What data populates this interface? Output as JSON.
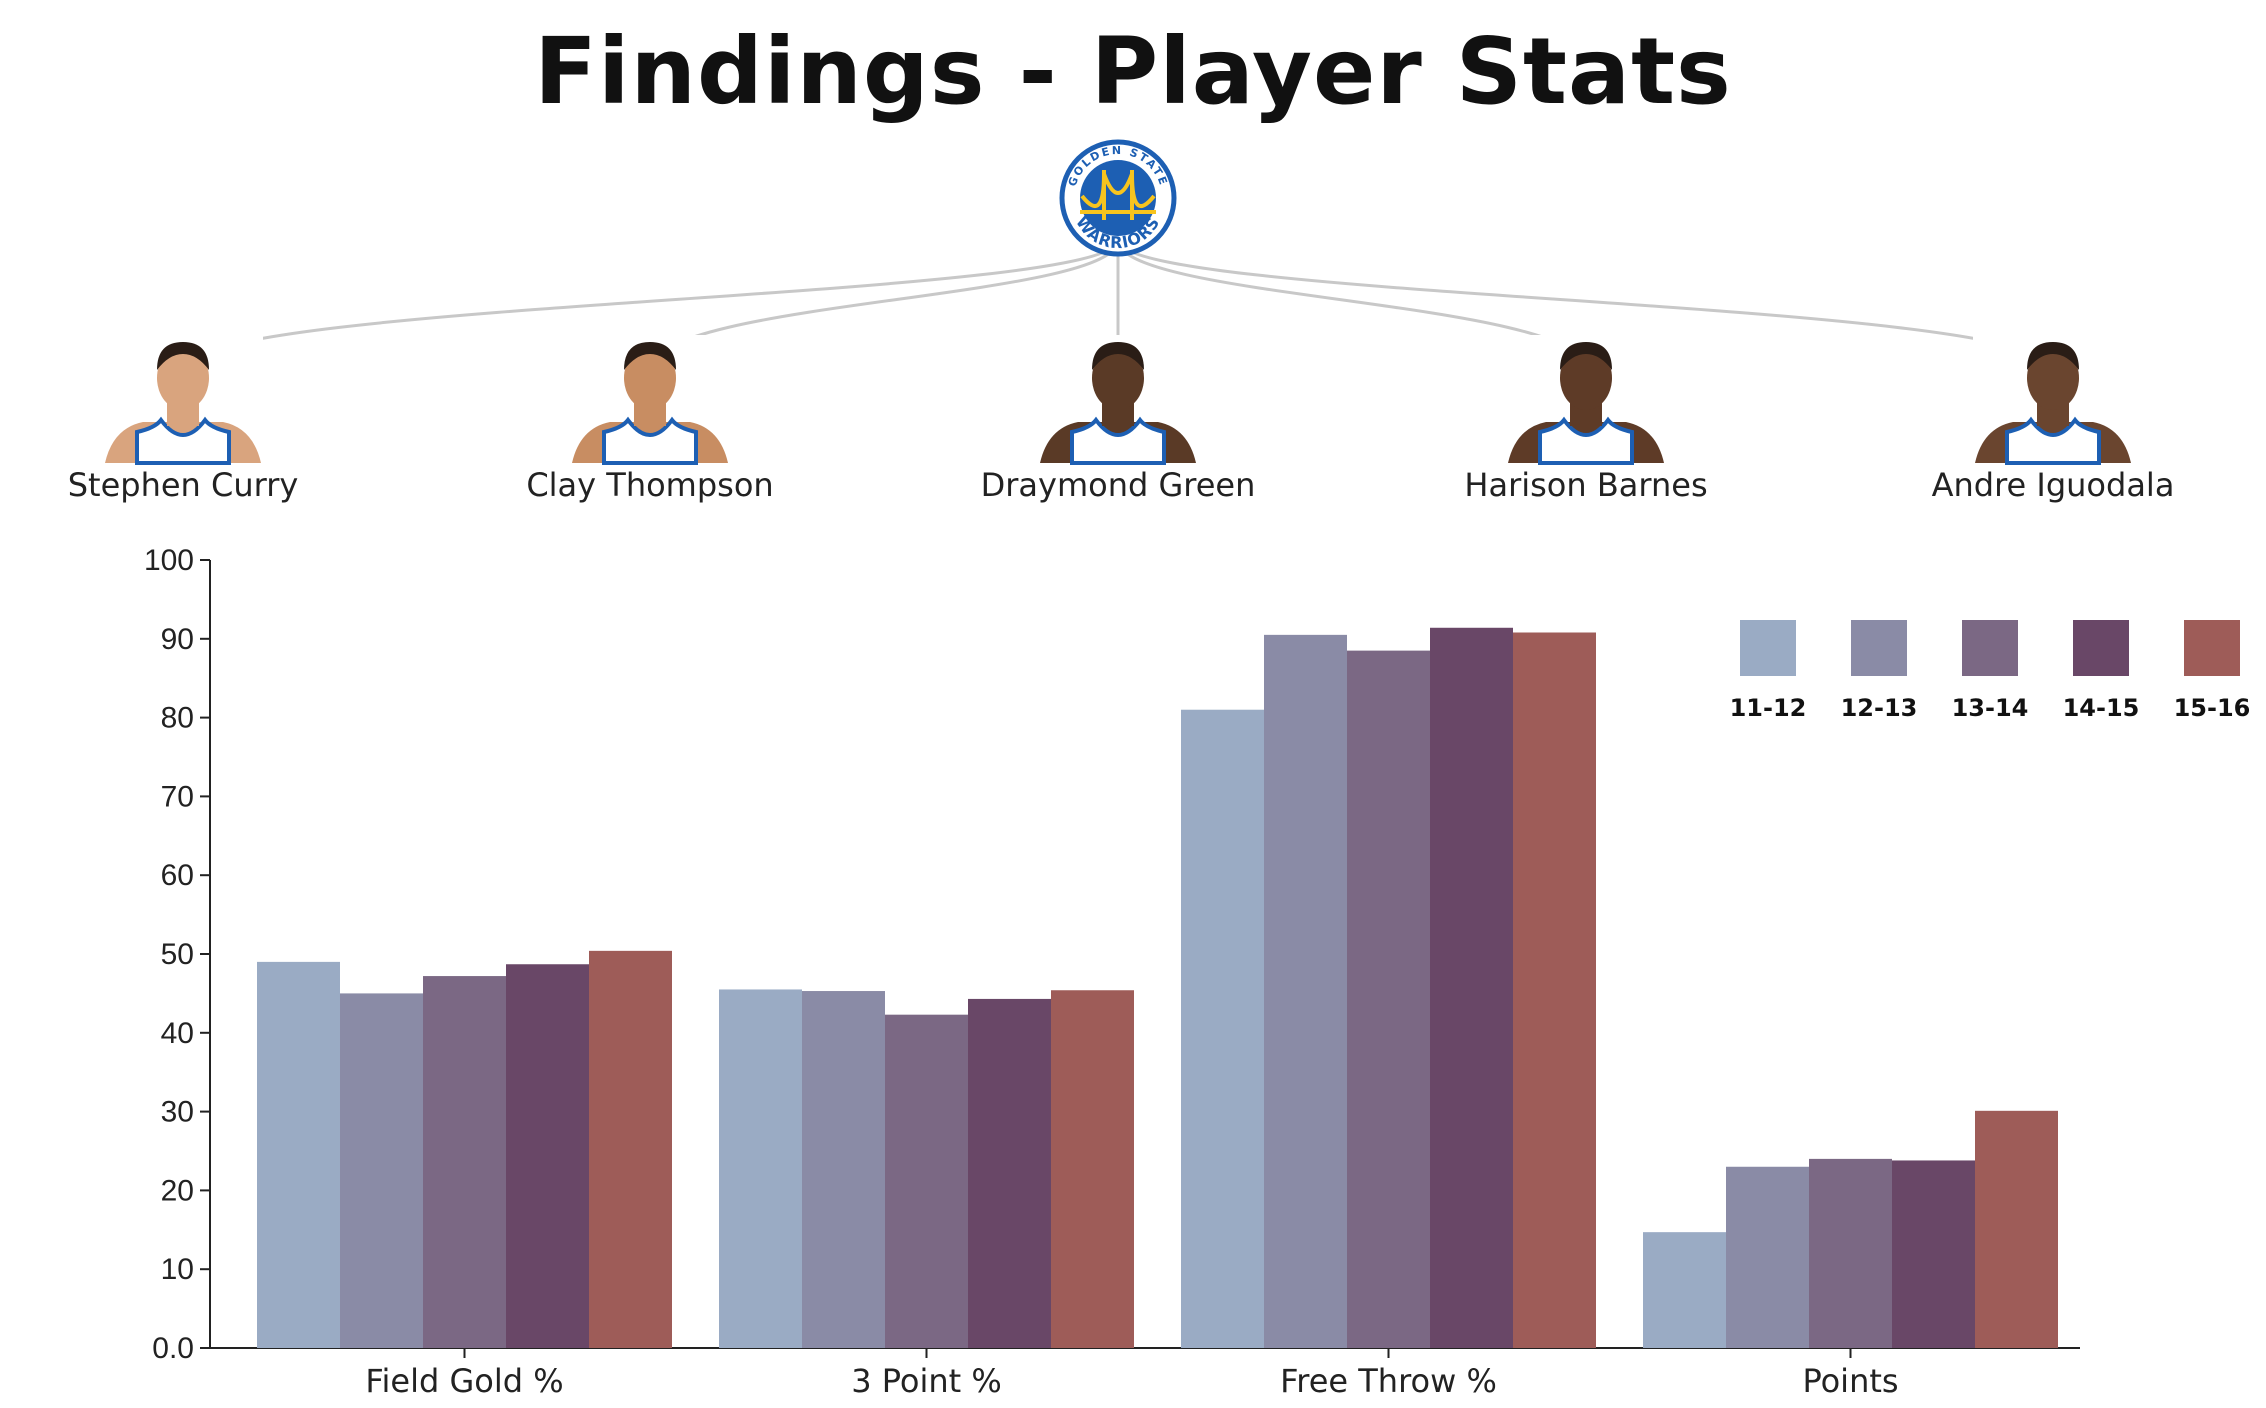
{
  "page": {
    "title": "Findings - Player Stats"
  },
  "team": {
    "logo_icon": "golden-state-warriors-logo",
    "logo_text_top": "GOLDEN STATE",
    "logo_text_bottom": "WARRIORS",
    "colors": {
      "blue": "#1d5fb3",
      "gold": "#f7c41e"
    }
  },
  "players": [
    {
      "name": "Stephen Curry",
      "icon": "player-headshot",
      "skin": "#d9a47e"
    },
    {
      "name": "Clay Thompson",
      "icon": "player-headshot",
      "skin": "#c88d62"
    },
    {
      "name": "Draymond Green",
      "icon": "player-headshot",
      "skin": "#5a3a26"
    },
    {
      "name": "Harison Barnes",
      "icon": "player-headshot",
      "skin": "#5e3b27"
    },
    {
      "name": "Andre Iguodala",
      "icon": "player-headshot",
      "skin": "#6a452f"
    }
  ],
  "chart_data": {
    "type": "bar",
    "title": "",
    "xlabel": "",
    "ylabel": "",
    "categories": [
      "Field Gold %",
      "3 Point %",
      "Free Throw %",
      "Points"
    ],
    "ylim": [
      0,
      100
    ],
    "yticks": [
      "0.0",
      "10",
      "20",
      "30",
      "40",
      "50",
      "60",
      "70",
      "80",
      "90",
      "100"
    ],
    "legend_position": "top-right",
    "grid": false,
    "series": [
      {
        "name": "11-12",
        "color": "#9aabc4",
        "values": [
          49,
          45.5,
          81,
          14.7
        ]
      },
      {
        "name": "12-13",
        "color": "#8a8ba6",
        "values": [
          45,
          45.3,
          90.5,
          23
        ]
      },
      {
        "name": "13-14",
        "color": "#7b6884",
        "values": [
          47.2,
          42.3,
          88.5,
          24
        ]
      },
      {
        "name": "14-15",
        "color": "#694767",
        "values": [
          48.7,
          44.3,
          91.4,
          23.8
        ]
      },
      {
        "name": "15-16",
        "color": "#9e5c58",
        "values": [
          50.4,
          45.4,
          90.8,
          30.1
        ]
      }
    ]
  }
}
